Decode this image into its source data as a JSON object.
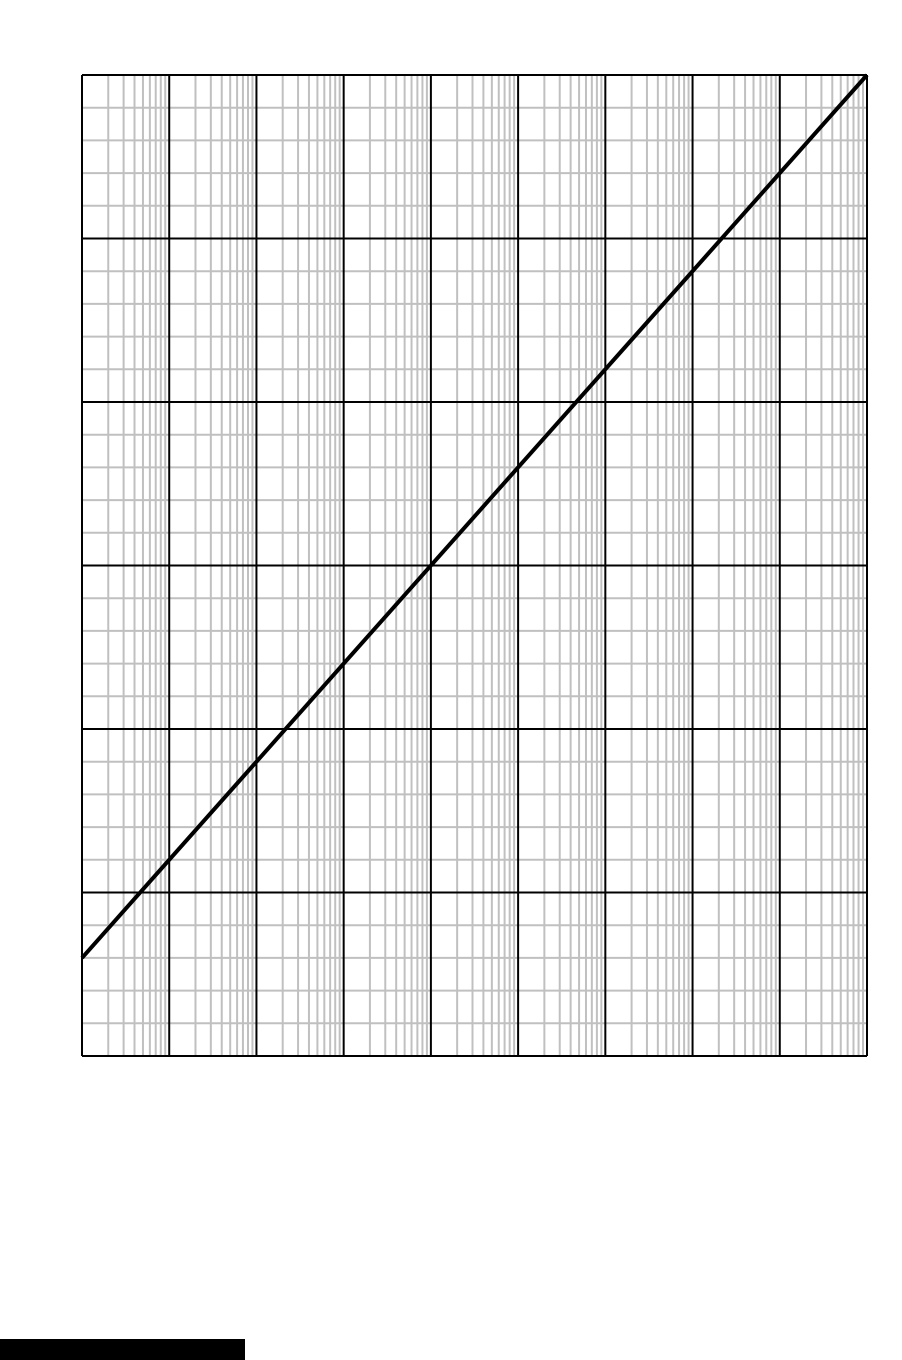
{
  "chart_data": {
    "type": "line",
    "title": "",
    "xlabel": "",
    "ylabel": "",
    "x_scale": "log",
    "y_scale": "linear",
    "xlim": [
      1,
      1000000000
    ],
    "ylim": [
      0,
      6
    ],
    "y_major_step": 1,
    "y_minor_divisions": 5,
    "grid": true,
    "series": [
      {
        "x": [
          1,
          1000000000
        ],
        "y": [
          0.6,
          6
        ]
      }
    ],
    "colors": {
      "line": "#000000",
      "major_grid": "#000000",
      "minor_grid": "#c0c0c0",
      "footer_bar": "#000000"
    }
  }
}
